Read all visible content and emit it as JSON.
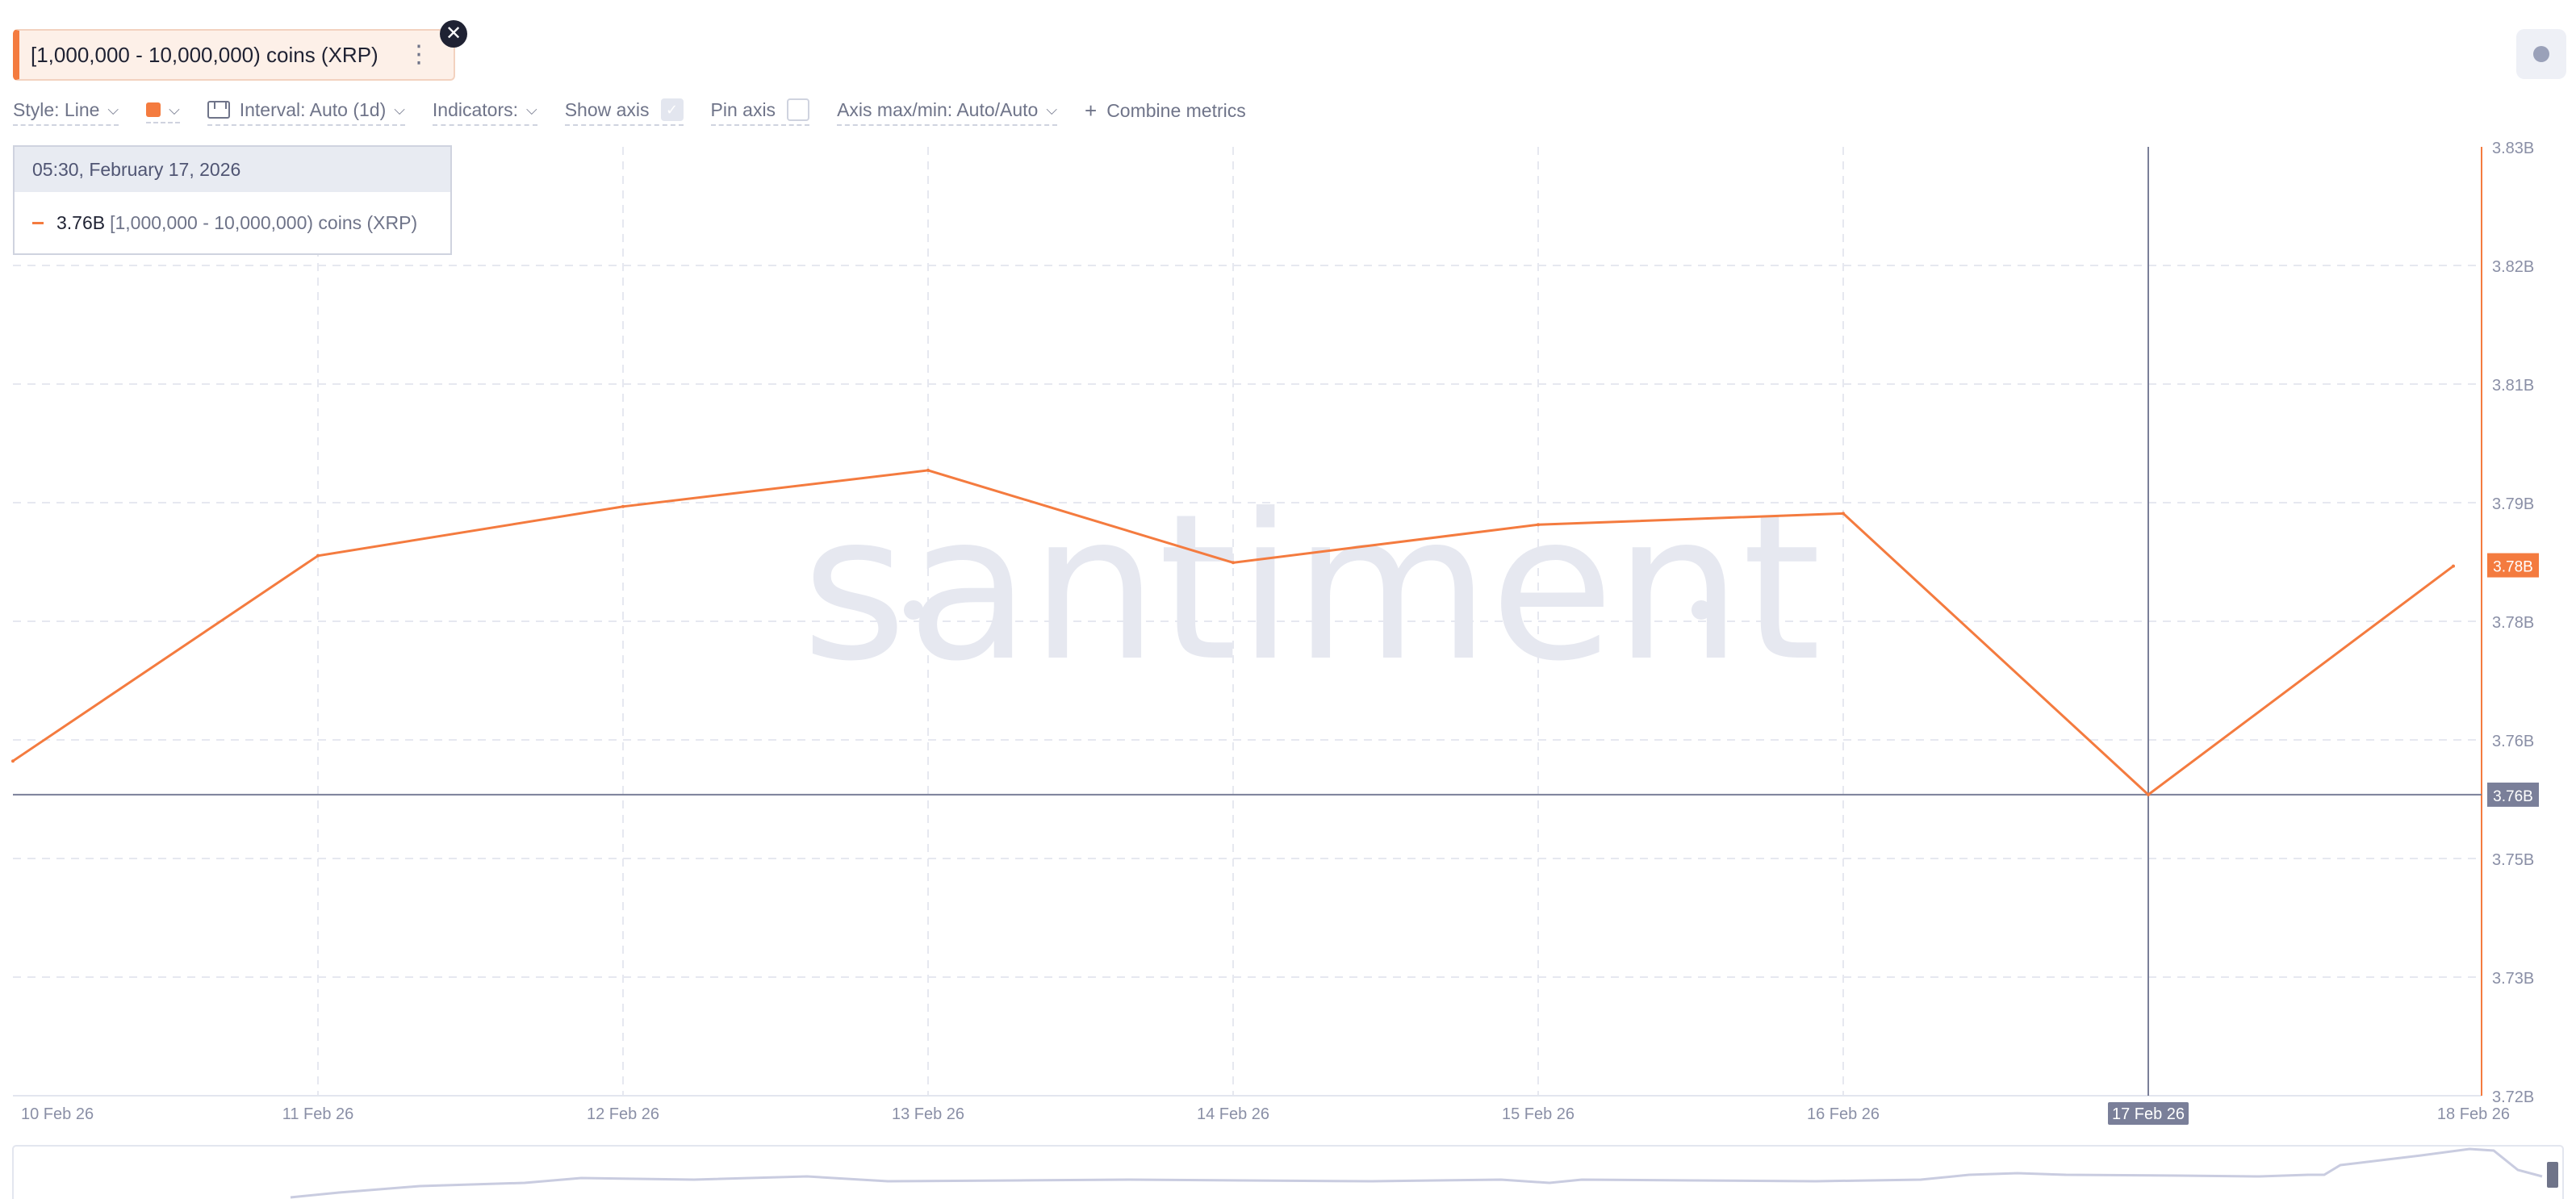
{
  "metric": {
    "label": "[1,000,000 - 10,000,000) coins (XRP)",
    "menu_icon": "more-vertical-icon",
    "close_icon": "close-icon",
    "color": "#f47b3f"
  },
  "toolbar": {
    "style_label": "Style: Line",
    "interval_label": "Interval: Auto (1d)",
    "indicators_label": "Indicators:",
    "show_axis_label": "Show axis",
    "show_axis_checked": true,
    "pin_axis_label": "Pin axis",
    "pin_axis_checked": false,
    "axis_maxmin_label": "Axis max/min: Auto/Auto",
    "combine_label": "Combine metrics",
    "combine_icon": "plus-icon"
  },
  "tooltip": {
    "date": "05:30, February 17, 2026",
    "value": "3.76B",
    "series": "[1,000,000 - 10,000,000) coins (XRP)"
  },
  "watermark": "santiment",
  "chart_data": {
    "type": "line",
    "x": [
      "10 Feb 26",
      "11 Feb 26",
      "12 Feb 26",
      "13 Feb 26",
      "14 Feb 26",
      "15 Feb 26",
      "16 Feb 26",
      "17 Feb 26",
      "18 Feb 26"
    ],
    "series": [
      {
        "name": "[1,000,000 - 10,000,000) coins (XRP)",
        "color": "#f47b3f",
        "points": [
          {
            "x": "10 Feb 26",
            "y": 3.7588
          },
          {
            "x": "11 Feb 26",
            "y": 3.7826
          },
          {
            "x": "12 Feb 26",
            "y": 3.7883
          },
          {
            "x": "13 Feb 26",
            "y": 3.7925
          },
          {
            "x": "14 Feb 26",
            "y": 3.7818
          },
          {
            "x": "15 Feb 26",
            "y": 3.7862
          },
          {
            "x": "16 Feb 26",
            "y": 3.7875
          },
          {
            "x": "17 Feb 26",
            "y": 3.7549
          },
          {
            "x": "18 Feb 26",
            "y": 3.7814
          }
        ]
      }
    ],
    "y_ticks": [
      "3.83B",
      "3.82B",
      "3.81B",
      "3.79B",
      "3.78B",
      "3.76B",
      "3.75B",
      "3.73B",
      "3.72B"
    ],
    "y_unit": "B",
    "ylim": [
      3.72,
      3.83
    ],
    "x_labels": [
      "10 Feb 26",
      "11 Feb 26",
      "12 Feb 26",
      "13 Feb 26",
      "14 Feb 26",
      "15 Feb 26",
      "16 Feb 26",
      "17 Feb 26",
      "18 Feb 26"
    ],
    "highlight_x_label": "17 Feb 26",
    "current_value_badge": "3.78B",
    "crosshair_value_badge": "3.76B",
    "crosshair_y": 3.7549,
    "grid": true
  }
}
